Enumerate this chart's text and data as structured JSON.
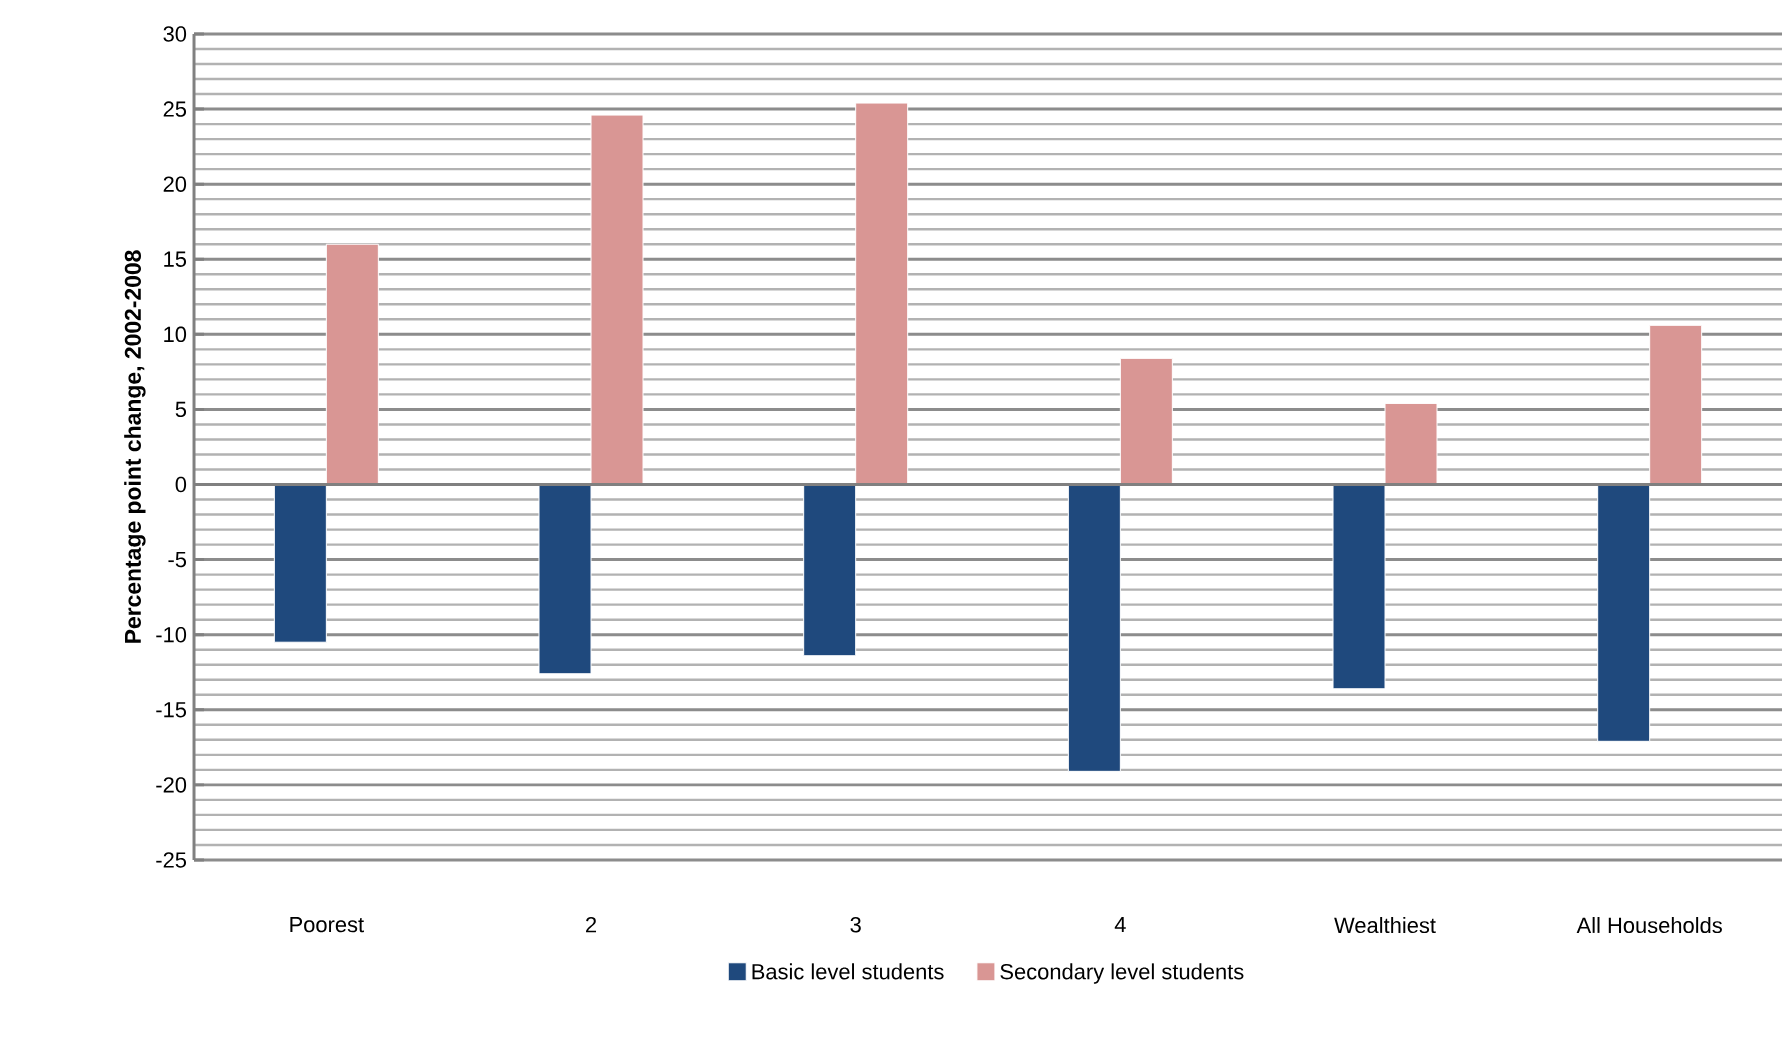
{
  "chart_data": {
    "type": "bar",
    "ylabel": "Percentage point change, 2002-2008",
    "categories": [
      "Poorest",
      "2",
      "3",
      "4",
      "Wealthiest",
      "All Households"
    ],
    "series": [
      {
        "name": "Basic level students",
        "color": "#1f497d",
        "values": [
          -10.5,
          -12.6,
          -11.4,
          -19.1,
          -13.6,
          -17.1
        ]
      },
      {
        "name": "Secondary level students",
        "color": "#d99694",
        "values": [
          16.0,
          24.6,
          25.4,
          8.4,
          5.4,
          10.6
        ]
      }
    ],
    "ylim": [
      -25,
      30
    ],
    "yticks": [
      -25,
      -20,
      -15,
      -10,
      -5,
      0,
      5,
      10,
      15,
      20,
      25,
      30
    ],
    "grid": "y",
    "legend": "bottom"
  }
}
